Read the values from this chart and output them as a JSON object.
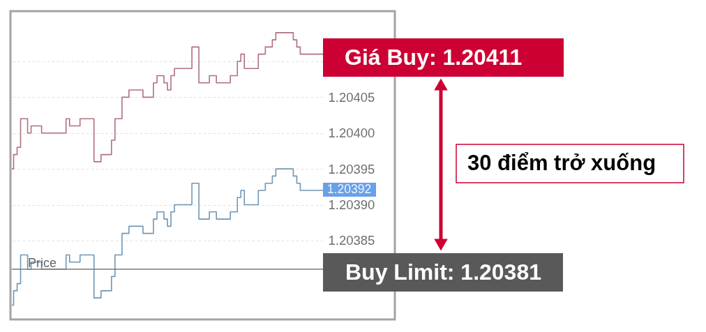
{
  "chart_data": {
    "type": "step",
    "categories": [
      null,
      null,
      null,
      null,
      null,
      null,
      null,
      null,
      null,
      null,
      null,
      null,
      null,
      null,
      null,
      null,
      null,
      null,
      null,
      null,
      null,
      null,
      null,
      null,
      null,
      null,
      null,
      null,
      null,
      null,
      null,
      null,
      null,
      null,
      null,
      null,
      null,
      null,
      null,
      null,
      null,
      null,
      null,
      null,
      null,
      null,
      null,
      null,
      null,
      null,
      null,
      null,
      null,
      null,
      null,
      null,
      null,
      null,
      null,
      null,
      null,
      null,
      null,
      null,
      null,
      null,
      null,
      null,
      null,
      null,
      null,
      null,
      null,
      null,
      null,
      null,
      null,
      null,
      null,
      null,
      null,
      null,
      null,
      null,
      null,
      null,
      null,
      null,
      null,
      null
    ],
    "series": [
      {
        "color": "#b0707c",
        "values": [
          1.20395,
          1.20397,
          1.20398,
          1.20402,
          1.20402,
          1.204,
          1.20401,
          1.20401,
          1.20401,
          1.204,
          1.204,
          1.204,
          1.204,
          1.204,
          1.204,
          1.204,
          1.20402,
          1.20401,
          1.20401,
          1.20401,
          1.20402,
          1.20402,
          1.20402,
          1.20402,
          1.20396,
          1.20396,
          1.20397,
          1.20397,
          1.20397,
          1.20399,
          1.20402,
          1.20402,
          1.20405,
          1.20405,
          1.20406,
          1.20406,
          1.20406,
          1.20406,
          1.20405,
          1.20405,
          1.20405,
          1.20407,
          1.20408,
          1.20408,
          1.20407,
          1.20406,
          1.20408,
          1.20409,
          1.20409,
          1.20409,
          1.20409,
          1.20409,
          1.20412,
          1.20412,
          1.20407,
          1.20407,
          1.20407,
          1.20408,
          1.20408,
          1.20407,
          1.20407,
          1.20407,
          1.20407,
          1.20408,
          1.20408,
          1.2041,
          1.20411,
          1.20409,
          1.20409,
          1.20409,
          1.20409,
          1.20411,
          1.20411,
          1.20412,
          1.20412,
          1.20413,
          1.20414,
          1.20414,
          1.20414,
          1.20414,
          1.20414,
          1.20413,
          1.20412,
          1.20411,
          1.20411,
          1.20411,
          1.20411,
          1.20411,
          1.20411,
          1.20411
        ]
      },
      {
        "color": "#7096b4",
        "values": [
          1.20376,
          1.20378,
          1.20379,
          1.20383,
          1.20383,
          1.20381,
          1.20382,
          1.20382,
          1.20382,
          1.20381,
          1.20381,
          1.20381,
          1.20381,
          1.20381,
          1.20381,
          1.20381,
          1.20383,
          1.20382,
          1.20382,
          1.20382,
          1.20383,
          1.20383,
          1.20383,
          1.20383,
          1.20377,
          1.20377,
          1.20378,
          1.20378,
          1.20378,
          1.2038,
          1.20383,
          1.20383,
          1.20386,
          1.20386,
          1.20387,
          1.20387,
          1.20387,
          1.20387,
          1.20386,
          1.20386,
          1.20386,
          1.20388,
          1.20389,
          1.20389,
          1.20388,
          1.20387,
          1.20389,
          1.2039,
          1.2039,
          1.2039,
          1.2039,
          1.2039,
          1.20393,
          1.20393,
          1.20388,
          1.20388,
          1.20388,
          1.20389,
          1.20389,
          1.20388,
          1.20388,
          1.20388,
          1.20388,
          1.20389,
          1.20389,
          1.20391,
          1.20392,
          1.2039,
          1.2039,
          1.2039,
          1.2039,
          1.20392,
          1.20392,
          1.20393,
          1.20393,
          1.20394,
          1.20395,
          1.20395,
          1.20395,
          1.20395,
          1.20395,
          1.20394,
          1.20393,
          1.20392,
          1.20392,
          1.20392,
          1.20392,
          1.20392,
          1.20392,
          1.20392
        ]
      }
    ],
    "ylim": [
      1.20374,
      1.20417
    ],
    "yticks": [
      1.20385,
      {
        "value": 1.2039,
        "label": "1.20390"
      },
      1.20395,
      {
        "value": 1.204,
        "label": "1.20400"
      },
      1.20405,
      {
        "value": 1.2041,
        "label": null
      }
    ],
    "grid": "y",
    "tick_labels": "y",
    "ref_lines": [
      {
        "axis": "y",
        "value": 1.20381,
        "label": "Price",
        "color": "#7a7a7a"
      }
    ],
    "annotations": [
      "Giá Buy: 1.20411",
      "Buy Limit: 1.20381",
      "1.20392",
      "30 điểm trở xuống"
    ]
  }
}
